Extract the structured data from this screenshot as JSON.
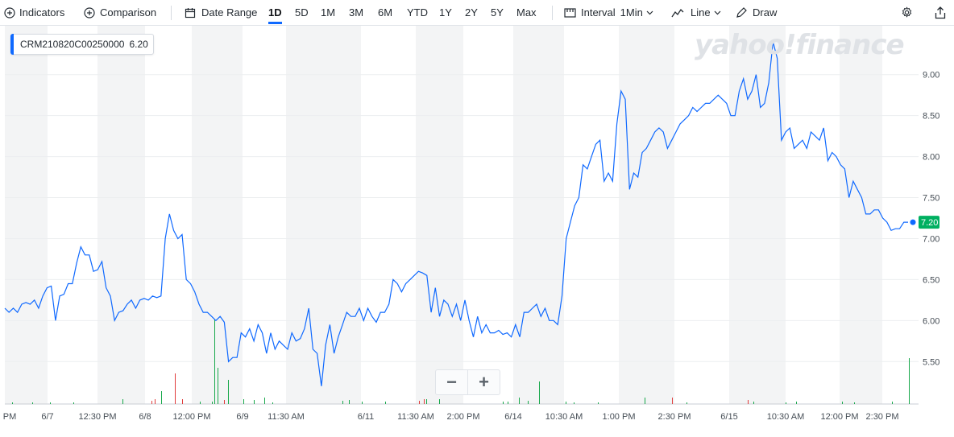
{
  "toolbar": {
    "indicators": "Indicators",
    "comparison": "Comparison",
    "date_range": "Date Range",
    "ranges": [
      "1D",
      "5D",
      "1M",
      "3M",
      "6M",
      "YTD",
      "1Y",
      "2Y",
      "5Y",
      "Max"
    ],
    "active_range": "1D",
    "interval_label": "Interval",
    "interval_value": "1Min",
    "chart_type": "Line",
    "draw": "Draw"
  },
  "legend": {
    "symbol": "CRM210820C00250000",
    "value": "6.20"
  },
  "watermark": "yahoo!finance",
  "zoom": {
    "out": "−",
    "in": "+"
  },
  "colors": {
    "line": "#0f69ff",
    "accent": "#0f69ff",
    "last_price": "#00b061",
    "vol_up": "#18a84b",
    "vol_down": "#e03d3d"
  },
  "chart_data": {
    "type": "line",
    "y_ticks": [
      "9.00",
      "8.50",
      "8.00",
      "7.50",
      "7.00",
      "6.50",
      "6.00",
      "5.50"
    ],
    "ylim": [
      5.1,
      9.4
    ],
    "x_ticks": [
      "PM",
      "6/7",
      "12:30 PM",
      "6/8",
      "12:00 PM",
      "6/9",
      "11:30 AM",
      "6/11",
      "11:30 AM",
      "2:00 PM",
      "6/14",
      "10:30 AM",
      "1:00 PM",
      "2:30 PM",
      "6/15",
      "10:30 AM",
      "12:00 PM",
      "2:30 PM"
    ],
    "last_price": "7.20",
    "series": [
      {
        "values": [
          6.15,
          6.1,
          6.15,
          6.1,
          6.2,
          6.22,
          6.2,
          6.25,
          6.15,
          6.3,
          6.4,
          6.42,
          6.0,
          6.3,
          6.32,
          6.45,
          6.45,
          6.7,
          6.9,
          6.8,
          6.8,
          6.6,
          6.62,
          6.72,
          6.4,
          6.3,
          6.0,
          6.1,
          6.12,
          6.2,
          6.25,
          6.15,
          6.25,
          6.27,
          6.25,
          6.3,
          6.28,
          6.3,
          7.0,
          7.3,
          7.1,
          7.0,
          7.05,
          6.5,
          6.45,
          6.35,
          6.2,
          6.1,
          6.1,
          6.05,
          6.0,
          6.05,
          5.98,
          5.5,
          5.55,
          5.55,
          5.85,
          5.8,
          5.9,
          5.75,
          5.95,
          5.85,
          5.6,
          5.85,
          5.65,
          5.75,
          5.7,
          5.65,
          5.85,
          5.75,
          5.78,
          5.9,
          6.15,
          5.65,
          5.6,
          5.2,
          5.7,
          5.95,
          5.6,
          5.8,
          5.95,
          6.1,
          6.05,
          6.05,
          6.15,
          6.0,
          6.15,
          6.05,
          5.98,
          6.1,
          6.1,
          6.2,
          6.5,
          6.45,
          6.35,
          6.45,
          6.5,
          6.55,
          6.6,
          6.58,
          6.55,
          6.1,
          6.4,
          6.05,
          6.25,
          6.2,
          6.05,
          6.2,
          6.0,
          6.25,
          6.0,
          5.8,
          6.05,
          5.85,
          5.95,
          5.85,
          5.85,
          5.88,
          5.83,
          5.85,
          5.8,
          5.95,
          5.8,
          6.1,
          6.1,
          6.15,
          6.2,
          6.05,
          6.15,
          6.0,
          6.0,
          5.95,
          6.3,
          7.0,
          7.2,
          7.4,
          7.5,
          7.9,
          7.85,
          8.0,
          8.15,
          8.2,
          7.7,
          7.8,
          7.7,
          8.4,
          8.8,
          8.7,
          7.6,
          7.8,
          7.75,
          8.05,
          8.1,
          8.2,
          8.3,
          8.35,
          8.3,
          8.1,
          8.2,
          8.3,
          8.4,
          8.45,
          8.5,
          8.6,
          8.55,
          8.6,
          8.65,
          8.65,
          8.7,
          8.75,
          8.7,
          8.65,
          8.5,
          8.5,
          8.8,
          8.95,
          8.7,
          8.8,
          9.0,
          8.6,
          8.65,
          8.9,
          9.4,
          9.2,
          8.2,
          8.3,
          8.35,
          8.1,
          8.15,
          8.2,
          8.1,
          8.3,
          8.25,
          8.2,
          8.35,
          7.95,
          8.05,
          8.0,
          7.9,
          7.85,
          7.5,
          7.7,
          7.6,
          7.5,
          7.3,
          7.3,
          7.35,
          7.35,
          7.25,
          7.2,
          7.1,
          7.12,
          7.12,
          7.2,
          7.2
        ]
      }
    ]
  }
}
